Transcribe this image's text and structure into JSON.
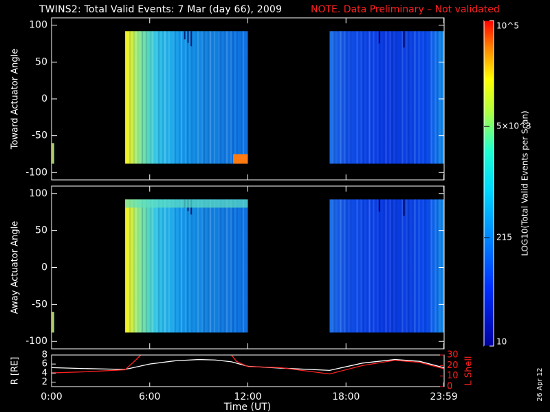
{
  "header": {
    "title": "TWINS2: Total Valid Events:  7 Mar (day  66), 2009",
    "note": "NOTE. Data Preliminary – Not validated"
  },
  "colors": {
    "note": "#ff2020",
    "r_line": "#ffffff",
    "lshell_line": "#ff2020"
  },
  "chart_data": [
    {
      "type": "heatmap",
      "panel": "toward",
      "ylabel": "Toward Actuator Angle",
      "ylim": [
        -110,
        110
      ],
      "y_ticks": [
        "100",
        "50",
        "0",
        "-50",
        "-100"
      ],
      "x_ticks": [
        "0:00",
        "6:00",
        "12:00",
        "18:00",
        "23:59"
      ],
      "data_blocks": [
        {
          "t_start": "4:30",
          "t_end": "12:00",
          "angle_range": [
            -88,
            92
          ]
        },
        {
          "t_start": "17:00",
          "t_end": "23:59",
          "angle_range": [
            -88,
            92
          ]
        }
      ]
    },
    {
      "type": "heatmap",
      "panel": "away",
      "ylabel": "Away Actuator Angle",
      "ylim": [
        -110,
        110
      ],
      "y_ticks": [
        "100",
        "50",
        "0",
        "-50",
        "-100"
      ],
      "x_ticks": [
        "0:00",
        "6:00",
        "12:00",
        "18:00",
        "23:59"
      ],
      "data_blocks": [
        {
          "t_start": "4:30",
          "t_end": "12:00",
          "angle_range": [
            -88,
            92
          ]
        },
        {
          "t_start": "17:00",
          "t_end": "23:59",
          "angle_range": [
            -88,
            92
          ]
        }
      ]
    },
    {
      "type": "line",
      "panel": "orbit",
      "ylabel_left": "R [RE]",
      "ylabel_right": "L Shell",
      "xlabel": "Time (UT)",
      "x_ticks": [
        "0:00",
        "6:00",
        "12:00",
        "18:00",
        "23:59"
      ],
      "left_ticks": [
        "8",
        "6",
        "4",
        "2"
      ],
      "right_ticks": [
        "30",
        "20",
        "10",
        "0"
      ],
      "ylim_left": [
        1,
        8
      ],
      "ylim_right": [
        0,
        30
      ],
      "series": [
        {
          "name": "R [RE]",
          "axis": "left",
          "x": [
            0,
            2,
            4.5,
            6,
            7.5,
            9,
            10,
            11,
            12,
            14,
            17,
            19,
            21,
            22.5,
            23.98
          ],
          "y": [
            5.2,
            5.0,
            4.8,
            6.0,
            6.7,
            7.0,
            6.9,
            6.5,
            5.5,
            5.1,
            4.6,
            6.2,
            7.0,
            6.6,
            5.2
          ]
        },
        {
          "name": "L Shell",
          "axis": "right",
          "x": [
            0,
            2,
            4.5,
            5.2,
            5.7,
            10.8,
            11.3,
            12,
            14,
            17,
            19,
            21,
            22.5,
            23.98
          ],
          "y": [
            13,
            14,
            16,
            26,
            34,
            34,
            24,
            19,
            18,
            12,
            20,
            25,
            23,
            17
          ]
        }
      ]
    }
  ],
  "colorbar": {
    "label": "LOG10(Total Valid Events per Scan)",
    "ticks": [
      "10^5",
      "5×10^3",
      "215",
      "10"
    ],
    "tick_values": [
      100000,
      5000,
      215,
      10
    ]
  },
  "side_date": "26 Apr 12"
}
